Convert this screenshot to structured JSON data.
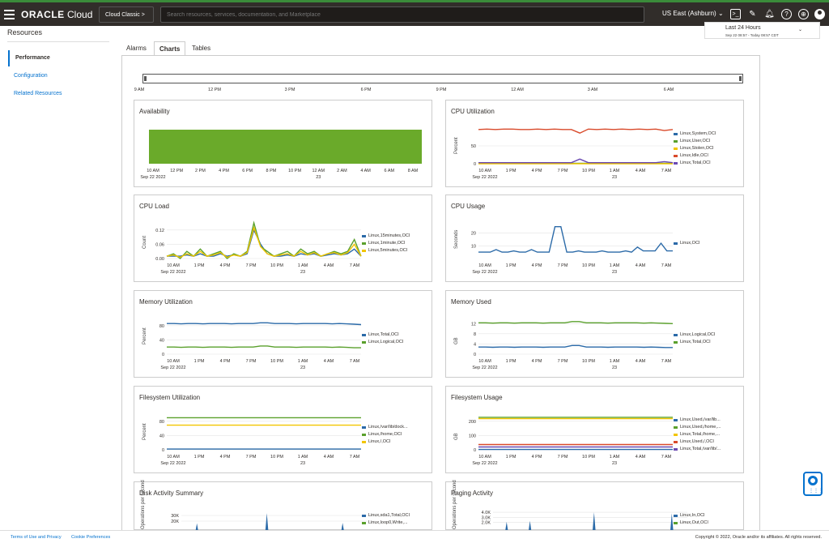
{
  "topbar": {
    "logo_brand": "ORACLE",
    "logo_product": "Cloud",
    "classic_label": "Cloud Classic",
    "classic_chevron": ">",
    "search_placeholder": "Search resources, services, documentation, and Marketplace",
    "region_label": "US East (Ashburn)",
    "region_chevron": "⌄",
    "icons": [
      "hamburger-icon",
      "cloud-shell-icon",
      "code-editor-icon",
      "bell-icon",
      "help-icon",
      "globe-icon",
      "user-avatar-icon"
    ],
    "bg_color": "#312d2a",
    "accent_color": "#3a8b3a"
  },
  "sidebar": {
    "title": "Resources",
    "items": [
      {
        "label": "Performance",
        "active": true
      },
      {
        "label": "Configuration",
        "active": false
      },
      {
        "label": "Related Resources",
        "active": false
      }
    ],
    "link_color": "#0572ce"
  },
  "time_range": {
    "label": "Last 24 Hours",
    "range": "Sep 22 08:57 - Today 08:57 CDT",
    "chevron": "⌄"
  },
  "tabs": [
    {
      "label": "Alarms",
      "active": false
    },
    {
      "label": "Charts",
      "active": true
    },
    {
      "label": "Tables",
      "active": false
    }
  ],
  "timeline": {
    "labels": [
      "9 AM",
      "12 PM",
      "3 PM",
      "6 PM",
      "9 PM",
      "12 AM",
      "3 AM",
      "6 AM"
    ]
  },
  "panels": [
    {
      "title": "Availability",
      "chart_type": "area",
      "x_ticks": [
        "10 AM",
        "12 PM",
        "2 PM",
        "4 PM",
        "6 PM",
        "8 PM",
        "10 PM",
        "12 AM",
        "2 AM",
        "4 AM",
        "6 AM",
        "8 AM"
      ],
      "x_subticks": {
        "0": "Sep 22 2022",
        "7": "23"
      },
      "fill_color": "#6aaa2a",
      "fill_fraction": 1.0
    },
    {
      "title": "CPU Utilization",
      "chart_type": "line",
      "ylabel": "Percent",
      "y_ticks": [
        "0",
        "50"
      ],
      "ymax": 100,
      "x_ticks": [
        "10 AM",
        "1 PM",
        "4 PM",
        "7 PM",
        "10 PM",
        "1 AM",
        "4 AM",
        "7 AM"
      ],
      "x_subticks": {
        "0": "Sep 22 2022",
        "5": "23"
      },
      "series": [
        {
          "name": "Linux,System,OCI",
          "color": "#2b6aa8",
          "values": [
            1,
            1,
            1,
            1,
            1,
            1,
            1,
            1,
            1,
            1,
            1,
            1,
            1,
            1,
            1,
            1,
            1,
            1,
            1,
            1,
            1,
            1,
            1,
            1
          ]
        },
        {
          "name": "Linux,User,OCI",
          "color": "#5aa02c",
          "values": [
            1,
            1,
            1,
            1,
            1,
            1,
            1,
            1,
            1,
            1,
            1,
            1,
            1,
            1,
            1,
            1,
            1,
            1,
            1,
            1,
            1,
            1,
            1,
            1
          ]
        },
        {
          "name": "Linux,Stolen,OCI",
          "color": "#f2c500",
          "values": [
            0,
            0,
            0,
            0,
            0,
            0,
            0,
            0,
            0,
            0,
            0,
            0,
            0,
            0,
            0,
            0,
            0,
            0,
            0,
            0,
            0,
            0,
            0,
            0
          ]
        },
        {
          "name": "Linux,Idle,OCI",
          "color": "#d94a2b",
          "values": [
            96,
            97,
            96,
            97,
            97,
            96,
            96,
            97,
            96,
            97,
            96,
            96,
            86,
            97,
            96,
            97,
            96,
            97,
            96,
            97,
            96,
            97,
            93,
            96
          ]
        },
        {
          "name": "Linux,Total,OCI",
          "color": "#6b4ab2",
          "values": [
            3,
            3,
            3,
            3,
            3,
            3,
            3,
            3,
            3,
            3,
            3,
            3,
            13,
            3,
            3,
            3,
            3,
            3,
            3,
            3,
            3,
            3,
            6,
            3
          ]
        }
      ]
    },
    {
      "title": "CPU Load",
      "chart_type": "line",
      "ylabel": "Count",
      "y_ticks": [
        "0.00",
        "0.06",
        "0.12"
      ],
      "ymax": 0.15,
      "x_ticks": [
        "10 AM",
        "1 PM",
        "4 PM",
        "7 PM",
        "10 PM",
        "1 AM",
        "4 AM",
        "7 AM"
      ],
      "x_subticks": {
        "0": "Sep 22 2022",
        "5": "23"
      },
      "series": [
        {
          "name": "Linux,15minutes,OCI",
          "color": "#2b6aa8",
          "values": [
            0.01,
            0.01,
            0.01,
            0.015,
            0.01,
            0.02,
            0.01,
            0.01,
            0.02,
            0.01,
            0.015,
            0.01,
            0.02,
            0.12,
            0.06,
            0.02,
            0.01,
            0.01,
            0.015,
            0.01,
            0.02,
            0.015,
            0.02,
            0.01,
            0.015,
            0.02,
            0.015,
            0.02,
            0.04,
            0.01
          ]
        },
        {
          "name": "Linux,1minute,OCI",
          "color": "#5aa02c",
          "values": [
            0.01,
            0.02,
            0.0,
            0.03,
            0.01,
            0.04,
            0.01,
            0.02,
            0.03,
            0.0,
            0.02,
            0.01,
            0.03,
            0.15,
            0.05,
            0.03,
            0.01,
            0.02,
            0.03,
            0.01,
            0.04,
            0.02,
            0.03,
            0.01,
            0.02,
            0.03,
            0.02,
            0.03,
            0.08,
            0.01
          ]
        },
        {
          "name": "Linux,5minutes,OCI",
          "color": "#f2c500",
          "values": [
            0.01,
            0.015,
            0.005,
            0.02,
            0.01,
            0.03,
            0.01,
            0.015,
            0.025,
            0.005,
            0.015,
            0.01,
            0.025,
            0.13,
            0.05,
            0.02,
            0.01,
            0.015,
            0.02,
            0.01,
            0.03,
            0.015,
            0.025,
            0.01,
            0.02,
            0.025,
            0.015,
            0.025,
            0.06,
            0.01
          ]
        }
      ]
    },
    {
      "title": "CPU Usage",
      "chart_type": "line",
      "ylabel": "Seconds",
      "y_ticks": [
        "10",
        "20"
      ],
      "ymax": 28,
      "x_ticks": [
        "10 AM",
        "1 PM",
        "4 PM",
        "7 PM",
        "10 PM",
        "1 AM",
        "4 AM",
        "7 AM"
      ],
      "x_subticks": {
        "0": "Sep 22 2022",
        "5": "23"
      },
      "series": [
        {
          "name": "Linux,OCI",
          "color": "#2b6aa8",
          "values": [
            5,
            5,
            5,
            7,
            5,
            5,
            6,
            5,
            5,
            7,
            5,
            5,
            5,
            25,
            25,
            5,
            5,
            6,
            5,
            5,
            5,
            6,
            5,
            5,
            5,
            6,
            5,
            9,
            6,
            6,
            6,
            12,
            6,
            6
          ]
        }
      ]
    },
    {
      "title": "Memory Utilization",
      "chart_type": "line",
      "ylabel": "Percent",
      "y_ticks": [
        "0",
        "40",
        "80"
      ],
      "ymax": 100,
      "x_ticks": [
        "10 AM",
        "1 PM",
        "4 PM",
        "7 PM",
        "10 PM",
        "1 AM",
        "4 AM",
        "7 AM"
      ],
      "x_subticks": {
        "0": "Sep 22 2022",
        "5": "23"
      },
      "series": [
        {
          "name": "Linux,Total,OCI",
          "color": "#2b6aa8",
          "values": [
            86,
            86,
            85,
            86,
            86,
            85,
            86,
            86,
            86,
            85,
            86,
            86,
            86,
            88,
            88,
            86,
            86,
            86,
            85,
            86,
            86,
            86,
            86,
            85,
            86,
            85,
            84,
            83
          ]
        },
        {
          "name": "Linux,Logical,OCI",
          "color": "#5aa02c",
          "values": [
            20,
            20,
            19,
            20,
            20,
            19,
            20,
            20,
            20,
            19,
            20,
            20,
            20,
            23,
            23,
            20,
            20,
            20,
            19,
            20,
            20,
            20,
            20,
            19,
            20,
            19,
            18,
            18
          ]
        }
      ]
    },
    {
      "title": "Memory Used",
      "chart_type": "line",
      "ylabel": "GB",
      "y_ticks": [
        "0",
        "4",
        "8",
        "12"
      ],
      "ymax": 14,
      "x_ticks": [
        "10 AM",
        "1 PM",
        "4 PM",
        "7 PM",
        "10 PM",
        "1 AM",
        "4 AM",
        "7 AM"
      ],
      "x_subticks": {
        "0": "Sep 22 2022",
        "5": "23"
      },
      "series": [
        {
          "name": "Linux,Logical,OCI",
          "color": "#2b6aa8",
          "values": [
            2.8,
            2.8,
            2.7,
            2.8,
            2.8,
            2.7,
            2.8,
            2.8,
            2.8,
            2.7,
            2.8,
            2.8,
            2.8,
            3.4,
            3.4,
            2.8,
            2.8,
            2.8,
            2.7,
            2.8,
            2.8,
            2.8,
            2.8,
            2.7,
            2.8,
            2.7,
            2.6,
            2.6
          ]
        },
        {
          "name": "Linux,Total,OCI",
          "color": "#5aa02c",
          "values": [
            12.3,
            12.3,
            12.2,
            12.3,
            12.3,
            12.2,
            12.3,
            12.3,
            12.3,
            12.2,
            12.3,
            12.3,
            12.3,
            12.8,
            12.8,
            12.3,
            12.3,
            12.3,
            12.2,
            12.3,
            12.3,
            12.3,
            12.3,
            12.2,
            12.3,
            12.2,
            12.1,
            12.0
          ]
        }
      ]
    },
    {
      "title": "Filesystem Utilization",
      "chart_type": "line",
      "ylabel": "Percent",
      "y_ticks": [
        "0",
        "40",
        "80"
      ],
      "ymax": 100,
      "x_ticks": [
        "10 AM",
        "1 PM",
        "4 PM",
        "7 PM",
        "10 PM",
        "1 AM",
        "4 AM",
        "7 AM"
      ],
      "x_subticks": {
        "0": "Sep 22 2022",
        "5": "23"
      },
      "series": [
        {
          "name": "Linux,/var/lib/dock...",
          "color": "#2b6aa8",
          "values": [
            2,
            2
          ]
        },
        {
          "name": "Linux,/home,OCI",
          "color": "#5aa02c",
          "values": [
            90,
            90
          ]
        },
        {
          "name": "Linux,/,OCI",
          "color": "#f2c500",
          "values": [
            69,
            69
          ]
        }
      ]
    },
    {
      "title": "Filesystem Usage",
      "chart_type": "line",
      "ylabel": "GB",
      "y_ticks": [
        "0",
        "100",
        "200"
      ],
      "ymax": 250,
      "x_ticks": [
        "10 AM",
        "1 PM",
        "4 PM",
        "7 PM",
        "10 PM",
        "1 AM",
        "4 AM",
        "7 AM"
      ],
      "x_subticks": {
        "0": "Sep 22 2022",
        "5": "23"
      },
      "series": [
        {
          "name": "Linux,Used,/var/lib...",
          "color": "#2b6aa8",
          "values": [
            2,
            2
          ]
        },
        {
          "name": "Linux,Used,/home,...",
          "color": "#5aa02c",
          "values": [
            228,
            228
          ]
        },
        {
          "name": "Linux,Total,/home,...",
          "color": "#f2c500",
          "values": [
            218,
            218
          ]
        },
        {
          "name": "Linux,Used,/,OCI",
          "color": "#d94a2b",
          "values": [
            37,
            37
          ]
        },
        {
          "name": "Linux,Total,/var/lib/...",
          "color": "#6b4ab2",
          "values": [
            20,
            20
          ]
        }
      ]
    },
    {
      "title": "Disk Activity Summary",
      "chart_type": "line",
      "ylabel": "Operations per second",
      "y_ticks": [
        "20K",
        "30K"
      ],
      "ymax": 40000,
      "x_ticks": [],
      "x_subticks": {},
      "series": [
        {
          "name": "Linux,sda1,Total,OCI",
          "color": "#2b6aa8",
          "values": [
            0,
            0,
            0,
            0,
            0,
            0,
            0,
            0,
            0,
            0,
            0,
            0,
            0,
            0,
            0,
            0,
            0,
            0,
            0,
            0,
            0,
            0,
            0,
            0,
            0,
            0,
            0,
            0,
            0,
            0,
            0,
            0,
            0,
            0,
            0,
            0,
            0,
            0,
            0,
            0,
            0,
            0,
            0,
            0,
            0,
            0,
            0,
            0,
            0,
            0,
            0,
            0,
            0,
            0,
            0,
            0,
            0,
            0,
            0,
            0
          ]
        },
        {
          "name": "Linux,loop0,Write,...",
          "color": "#5aa02c",
          "values": [
            0,
            0,
            0,
            0,
            0,
            0,
            0,
            0,
            0,
            0,
            0,
            0,
            0,
            0,
            0,
            0,
            0,
            0,
            0,
            0,
            0,
            0,
            0,
            0,
            0,
            0,
            0,
            0,
            0,
            0,
            0,
            0,
            0,
            0,
            0,
            0,
            0,
            0,
            0,
            0,
            0,
            0,
            0,
            0,
            0,
            0,
            0,
            0,
            0,
            0,
            0,
            0,
            0,
            0,
            0,
            0,
            0,
            0,
            0,
            0
          ]
        }
      ],
      "spikes": [
        {
          "x": 0.08,
          "v": 16000
        },
        {
          "x": 0.44,
          "v": 34000
        },
        {
          "x": 0.83,
          "v": 17000
        }
      ]
    },
    {
      "title": "Paging Activity",
      "chart_type": "line",
      "ylabel": "Operations per second",
      "y_ticks": [
        "2.0K",
        "3.0K",
        "4.0K"
      ],
      "ymax": 4500,
      "x_ticks": [],
      "x_subticks": {},
      "series": [
        {
          "name": "Linux,In,OCI",
          "color": "#2b6aa8",
          "values": [
            0,
            0
          ]
        },
        {
          "name": "Linux,Out,OCI",
          "color": "#5aa02c",
          "values": [
            0,
            0
          ]
        }
      ],
      "spikes": [
        {
          "x": 0.07,
          "v": 2100
        },
        {
          "x": 0.19,
          "v": 2300
        },
        {
          "x": 0.52,
          "v": 4000
        },
        {
          "x": 0.92,
          "v": 3800
        }
      ]
    }
  ],
  "footer": {
    "terms": "Terms of Use and Privacy",
    "cookies": "Cookie Preferences",
    "copyright": "Copyright © 2022, Oracle and/or its affiliates. All rights reserved."
  },
  "help_widget_dots": "⋮⋮⋮"
}
